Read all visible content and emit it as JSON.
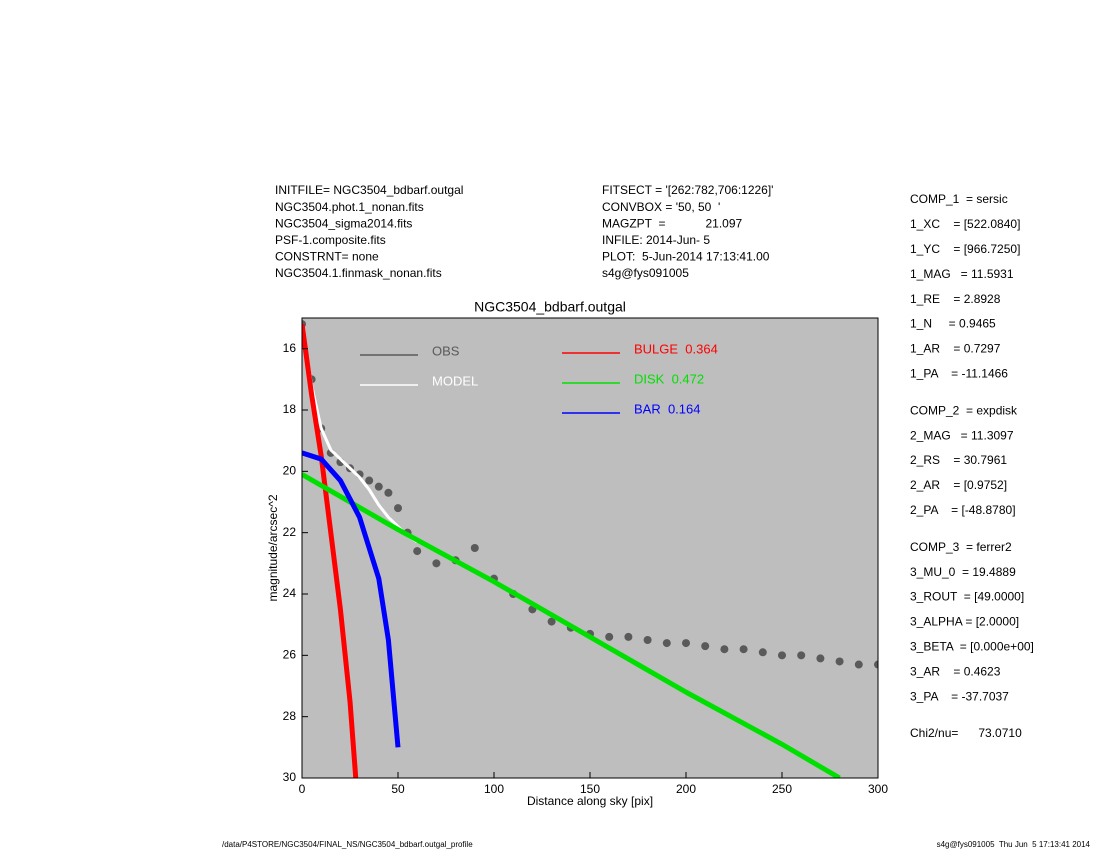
{
  "header_left": [
    "INITFILE= NGC3504_bdbarf.outgal",
    "NGC3504.phot.1_nonan.fits",
    "NGC3504_sigma2014.fits",
    "PSF-1.composite.fits",
    "CONSTRNT= none",
    "NGC3504.1.finmask_nonan.fits"
  ],
  "header_middle": [
    "FITSECT = '[262:782,706:1226]'",
    "CONVBOX = '50, 50  '",
    "MAGZPT  =            21.097",
    "INFILE: 2014-Jun- 5",
    "PLOT:  5-Jun-2014 17:13:41.00",
    "s4g@fys091005"
  ],
  "parameters": [
    "COMP_1  = sersic",
    "1_XC    = [522.0840]",
    "1_YC    = [966.7250]",
    "1_MAG   = 11.5931",
    "1_RE    = 2.8928",
    "1_N     = 0.9465",
    "1_AR    = 0.7297",
    "1_PA    = -11.1466",
    "COMP_2  = expdisk",
    "2_MAG   = 11.3097",
    "2_RS    = 30.7961",
    "2_AR    = [0.9752]",
    "2_PA    = [-48.8780]",
    "COMP_3  = ferrer2",
    "3_MU_0  = 19.4889",
    "3_ROUT  = [49.0000]",
    "3_ALPHA = [2.0000]",
    "3_BETA  = [0.000e+00]",
    "3_AR    = 0.4623",
    "3_PA    = -37.7037",
    "Chi2/nu=      73.0710"
  ],
  "footer_left": "/data/P4STORE/NGC3504/FINAL_NS/NGC3504_bdbarf.outgal_profile",
  "footer_right": "s4g@fys091005  Thu Jun  5 17:13:41 2014",
  "chart_data": {
    "type": "scatter",
    "title": "NGC3504_bdbarf.outgal",
    "xlabel": "Distance along sky [pix]",
    "ylabel": "magnitude/arcsec^2",
    "xlim": [
      0,
      300
    ],
    "ylim": [
      15,
      30
    ],
    "y_reversed": true,
    "xticks": [
      0,
      50,
      100,
      150,
      200,
      250,
      300
    ],
    "yticks": [
      16,
      18,
      20,
      22,
      24,
      26,
      28,
      30
    ],
    "background": "#bebebe",
    "series": [
      {
        "name": "OBS",
        "color": "#5a5a5a",
        "mode": "markers",
        "x": [
          0,
          5,
          10,
          15,
          20,
          25,
          30,
          35,
          40,
          45,
          50,
          55,
          60,
          70,
          80,
          90,
          100,
          110,
          120,
          130,
          140,
          150,
          160,
          170,
          180,
          190,
          200,
          210,
          220,
          230,
          240,
          250,
          260,
          270,
          280,
          290,
          300
        ],
        "values": [
          15.2,
          17,
          18.6,
          19.4,
          19.7,
          19.9,
          20.1,
          20.3,
          20.5,
          20.7,
          21.2,
          22,
          22.6,
          23,
          22.9,
          22.5,
          23.5,
          24,
          24.5,
          24.9,
          25.1,
          25.3,
          25.4,
          25.4,
          25.5,
          25.6,
          25.6,
          25.7,
          25.8,
          25.8,
          25.9,
          26,
          26,
          26.1,
          26.2,
          26.3,
          26.3
        ]
      },
      {
        "name": "MODEL",
        "color": "#ffffff",
        "mode": "lines",
        "x": [
          0,
          5,
          10,
          15,
          20,
          25,
          30,
          35,
          40,
          45,
          50,
          55,
          60
        ],
        "values": [
          15.2,
          17.2,
          18.6,
          19.3,
          19.6,
          19.9,
          20.2,
          20.6,
          21.1,
          21.5,
          21.8,
          22.1,
          22.3
        ]
      },
      {
        "name": "BULGE  0.364",
        "color": "#ff0000",
        "mode": "lines",
        "x": [
          0,
          5,
          10,
          15,
          20,
          25,
          28
        ],
        "values": [
          15.2,
          17.5,
          19.5,
          22,
          24.5,
          27.5,
          30
        ]
      },
      {
        "name": "DISK  0.472",
        "color": "#00e000",
        "mode": "lines",
        "x": [
          0,
          50,
          100,
          150,
          200,
          250,
          280
        ],
        "values": [
          20.1,
          21.9,
          23.6,
          25.4,
          27.2,
          28.9,
          30
        ]
      },
      {
        "name": "BAR  0.164",
        "color": "#0000ff",
        "mode": "lines",
        "x": [
          0,
          10,
          20,
          30,
          40,
          45,
          50
        ],
        "values": [
          19.4,
          19.6,
          20.3,
          21.5,
          23.5,
          25.5,
          29
        ]
      }
    ]
  }
}
